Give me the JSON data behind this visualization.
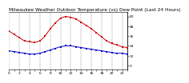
{
  "title": "Milwaukee Weather Outdoor Temperature (vs) Dew Point (Last 24 Hours)",
  "temp_values": [
    42,
    38,
    34,
    30,
    29,
    28,
    30,
    36,
    45,
    52,
    58,
    60,
    59,
    57,
    53,
    49,
    45,
    40,
    35,
    30,
    27,
    25,
    23,
    22
  ],
  "dew_values": [
    18,
    17,
    16,
    15,
    14,
    14,
    15,
    17,
    19,
    21,
    23,
    24,
    24,
    23,
    22,
    21,
    20,
    19,
    18,
    17,
    16,
    15,
    15,
    14
  ],
  "temp_color": "#cc0000",
  "dew_color": "#0000cc",
  "bg_color": "#ffffff",
  "plot_bg": "#ffffff",
  "grid_color": "#888888",
  "ylim": [
    -5,
    65
  ],
  "xlim": [
    0,
    23
  ],
  "yticks": [
    0,
    12,
    24,
    36,
    48,
    60
  ],
  "ytick_labels": [
    "0",
    "12",
    "24",
    "36",
    "48",
    "60"
  ],
  "title_fontsize": 4.2,
  "tick_fontsize": 3.2,
  "markersize": 1.5,
  "linewidth": 0.7,
  "grid_linewidth": 0.35
}
